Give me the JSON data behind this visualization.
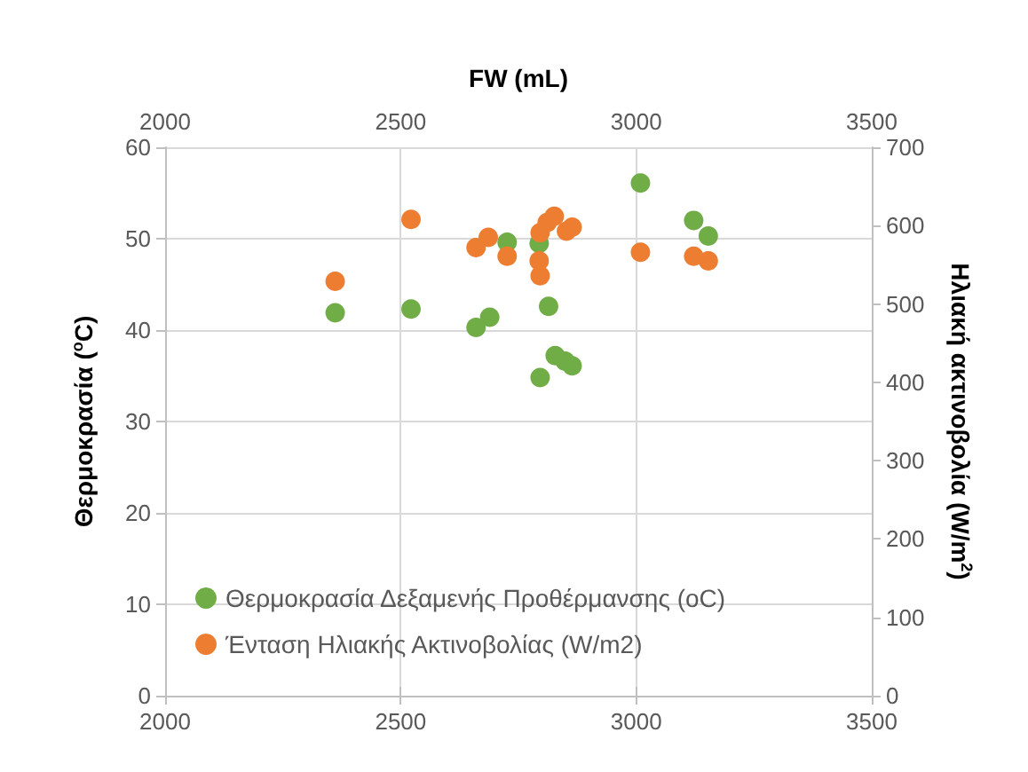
{
  "chart_data": {
    "type": "scatter",
    "x2label": "FW (mL)",
    "ylabel": "Θερμοκρασία ($^{o}$C)",
    "y2label": "Ηλιακή ακτινοβολία (W/m$^{2}$)",
    "series": [
      {
        "name": "Θερμοκρασία Δεξαμενής Προθέρμανσης (oC)",
        "color": "#70ad47",
        "x": [
          2361,
          2522,
          2660,
          2689,
          2726,
          2794,
          2814,
          2796,
          2828,
          2849,
          2864,
          3009,
          3122,
          3153
        ],
        "values": [
          41.9,
          42.3,
          40.3,
          41.4,
          49.6,
          49.5,
          42.6,
          34.8,
          37.2,
          36.6,
          36.1,
          56.1,
          52.0,
          50.3
        ]
      },
      {
        "name": "Ένταση Ηλιακής Ακτινοβολίας (W/m2)",
        "color": "#ed7d31",
        "axis": "y2",
        "x": [
          2361,
          2522,
          2660,
          2686,
          2726,
          2794,
          2796,
          2796,
          2811,
          2826,
          2852,
          2864,
          3009,
          3122,
          3153
        ],
        "values": [
          529,
          608,
          572,
          585,
          561,
          555,
          536,
          591,
          604,
          612,
          593,
          598,
          566,
          561,
          555
        ]
      }
    ],
    "xlim": [
      2000,
      3500
    ],
    "xticks": [
      2000,
      2500,
      3000,
      3500
    ],
    "x2lim": [
      2000,
      3500
    ],
    "x2ticks": [
      2000,
      2500,
      3000,
      3500
    ],
    "ylim": [
      0,
      60
    ],
    "yticks": [
      0,
      10,
      20,
      30,
      40,
      50,
      60
    ],
    "y2lim": [
      0,
      700
    ],
    "y2ticks": [
      0,
      100,
      200,
      300,
      400,
      500,
      600,
      700
    ],
    "grid": true,
    "legend": "bottom left",
    "marker": "circle"
  }
}
